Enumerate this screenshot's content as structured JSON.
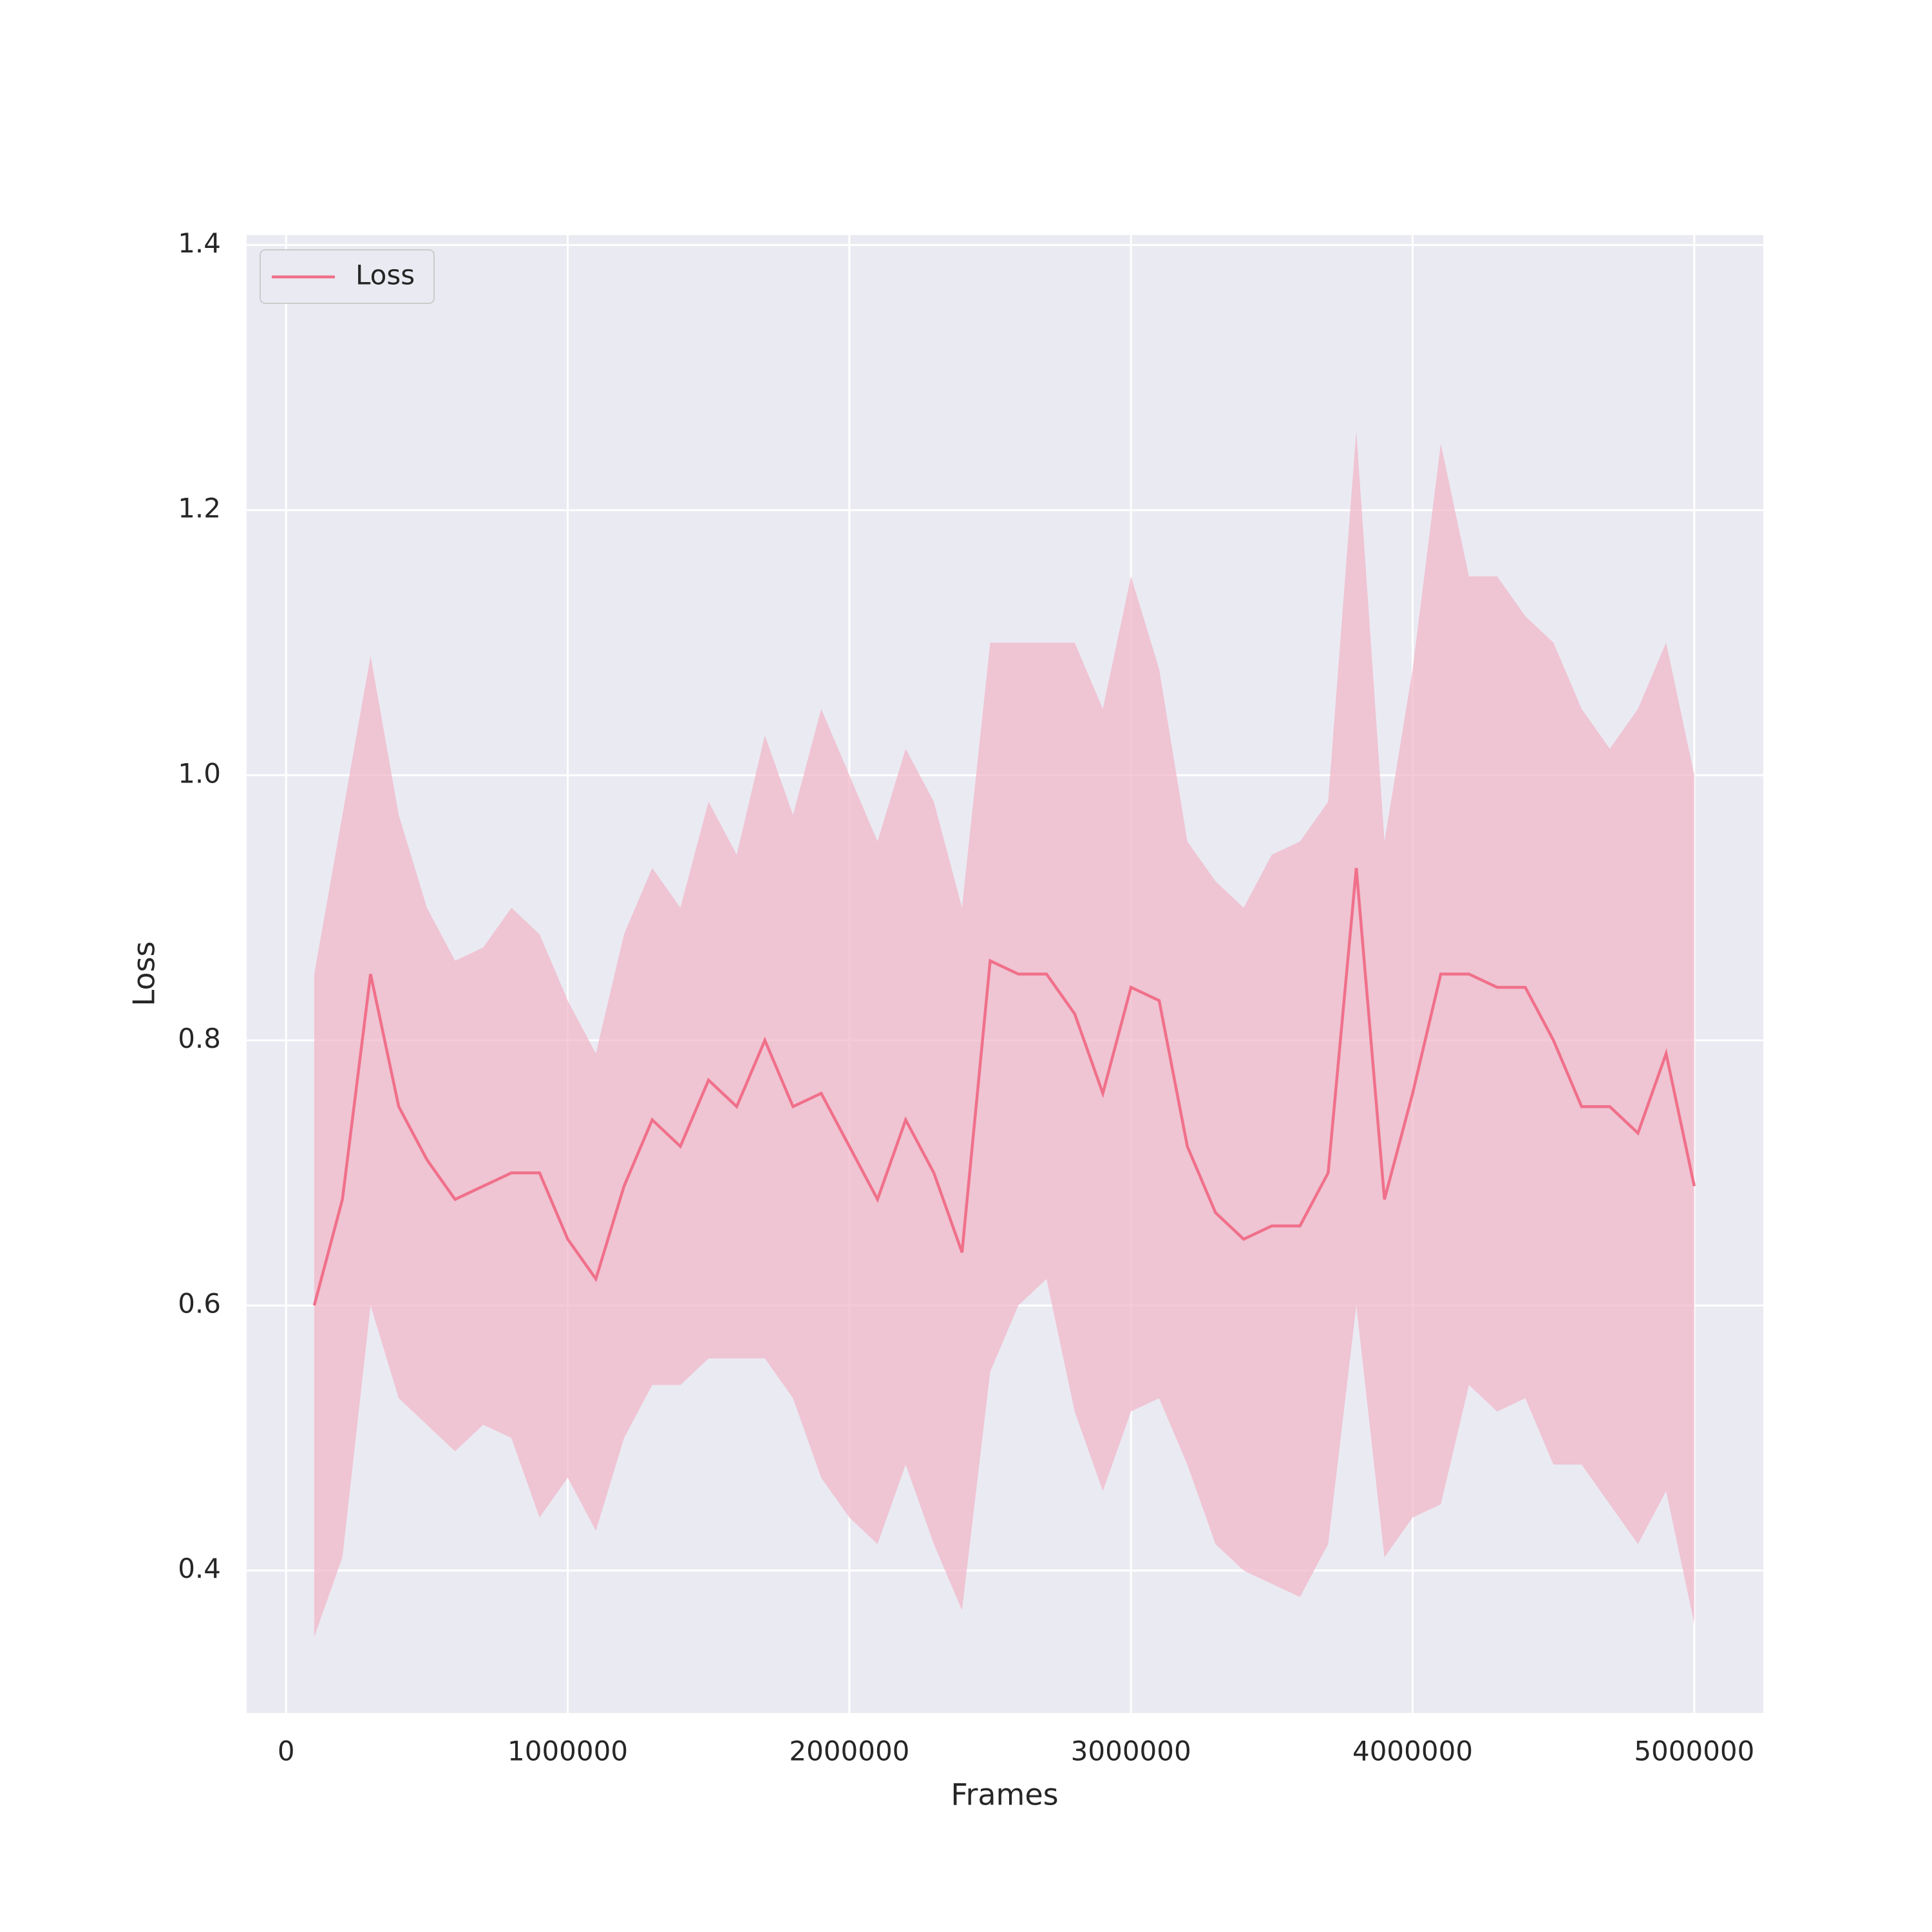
{
  "chart_data": {
    "type": "line",
    "xlabel": "Frames",
    "ylabel": "Loss",
    "x": [
      100000,
      200000,
      300000,
      400000,
      500000,
      600000,
      700000,
      800000,
      900000,
      1000000,
      1100000,
      1200000,
      1300000,
      1400000,
      1500000,
      1600000,
      1700000,
      1800000,
      1900000,
      2000000,
      2100000,
      2200000,
      2300000,
      2400000,
      2500000,
      2600000,
      2700000,
      2800000,
      2900000,
      3000000,
      3100000,
      3200000,
      3300000,
      3400000,
      3500000,
      3600000,
      3700000,
      3800000,
      3900000,
      4000000,
      4100000,
      4200000,
      4300000,
      4400000,
      4500000,
      4600000,
      4700000,
      4800000,
      4900000,
      5000000
    ],
    "series": [
      {
        "name": "Loss",
        "color": "#f0708a",
        "band_color": "#f1b3c6",
        "values": [
          0.6,
          0.68,
          0.85,
          0.75,
          0.71,
          0.68,
          0.69,
          0.7,
          0.7,
          0.65,
          0.62,
          0.69,
          0.74,
          0.72,
          0.77,
          0.75,
          0.8,
          0.75,
          0.76,
          0.72,
          0.68,
          0.74,
          0.7,
          0.64,
          0.86,
          0.85,
          0.85,
          0.82,
          0.76,
          0.84,
          0.83,
          0.72,
          0.67,
          0.65,
          0.66,
          0.66,
          0.7,
          0.93,
          0.68,
          0.76,
          0.85,
          0.85,
          0.84,
          0.84,
          0.8,
          0.75,
          0.75,
          0.73,
          0.79,
          0.69
        ],
        "upper": [
          0.85,
          0.97,
          1.09,
          0.97,
          0.9,
          0.86,
          0.87,
          0.9,
          0.88,
          0.83,
          0.79,
          0.88,
          0.93,
          0.9,
          0.98,
          0.94,
          1.03,
          0.97,
          1.05,
          1.0,
          0.95,
          1.02,
          0.98,
          0.9,
          1.1,
          1.1,
          1.1,
          1.1,
          1.05,
          1.15,
          1.08,
          0.95,
          0.92,
          0.9,
          0.94,
          0.95,
          0.98,
          1.26,
          0.95,
          1.08,
          1.25,
          1.15,
          1.15,
          1.12,
          1.1,
          1.05,
          1.02,
          1.05,
          1.1,
          1.0
        ],
        "lower": [
          0.35,
          0.41,
          0.6,
          0.53,
          0.51,
          0.49,
          0.51,
          0.5,
          0.44,
          0.47,
          0.43,
          0.5,
          0.54,
          0.54,
          0.56,
          0.56,
          0.56,
          0.53,
          0.47,
          0.44,
          0.42,
          0.48,
          0.42,
          0.37,
          0.55,
          0.6,
          0.62,
          0.52,
          0.46,
          0.52,
          0.53,
          0.48,
          0.42,
          0.4,
          0.39,
          0.38,
          0.42,
          0.6,
          0.41,
          0.44,
          0.45,
          0.54,
          0.52,
          0.53,
          0.48,
          0.48,
          0.45,
          0.42,
          0.46,
          0.36
        ]
      }
    ],
    "xlim": [
      -140000,
      5245000
    ],
    "xticks": [
      0,
      1000000,
      2000000,
      3000000,
      4000000,
      5000000
    ],
    "ylim": [
      0.2925,
      1.4075
    ],
    "yticks": [
      0.4,
      0.6,
      0.8,
      {
        "value": 1,
        "label": "1.0"
      },
      1.2,
      1.4
    ],
    "grid": true,
    "legend": "upper left"
  }
}
